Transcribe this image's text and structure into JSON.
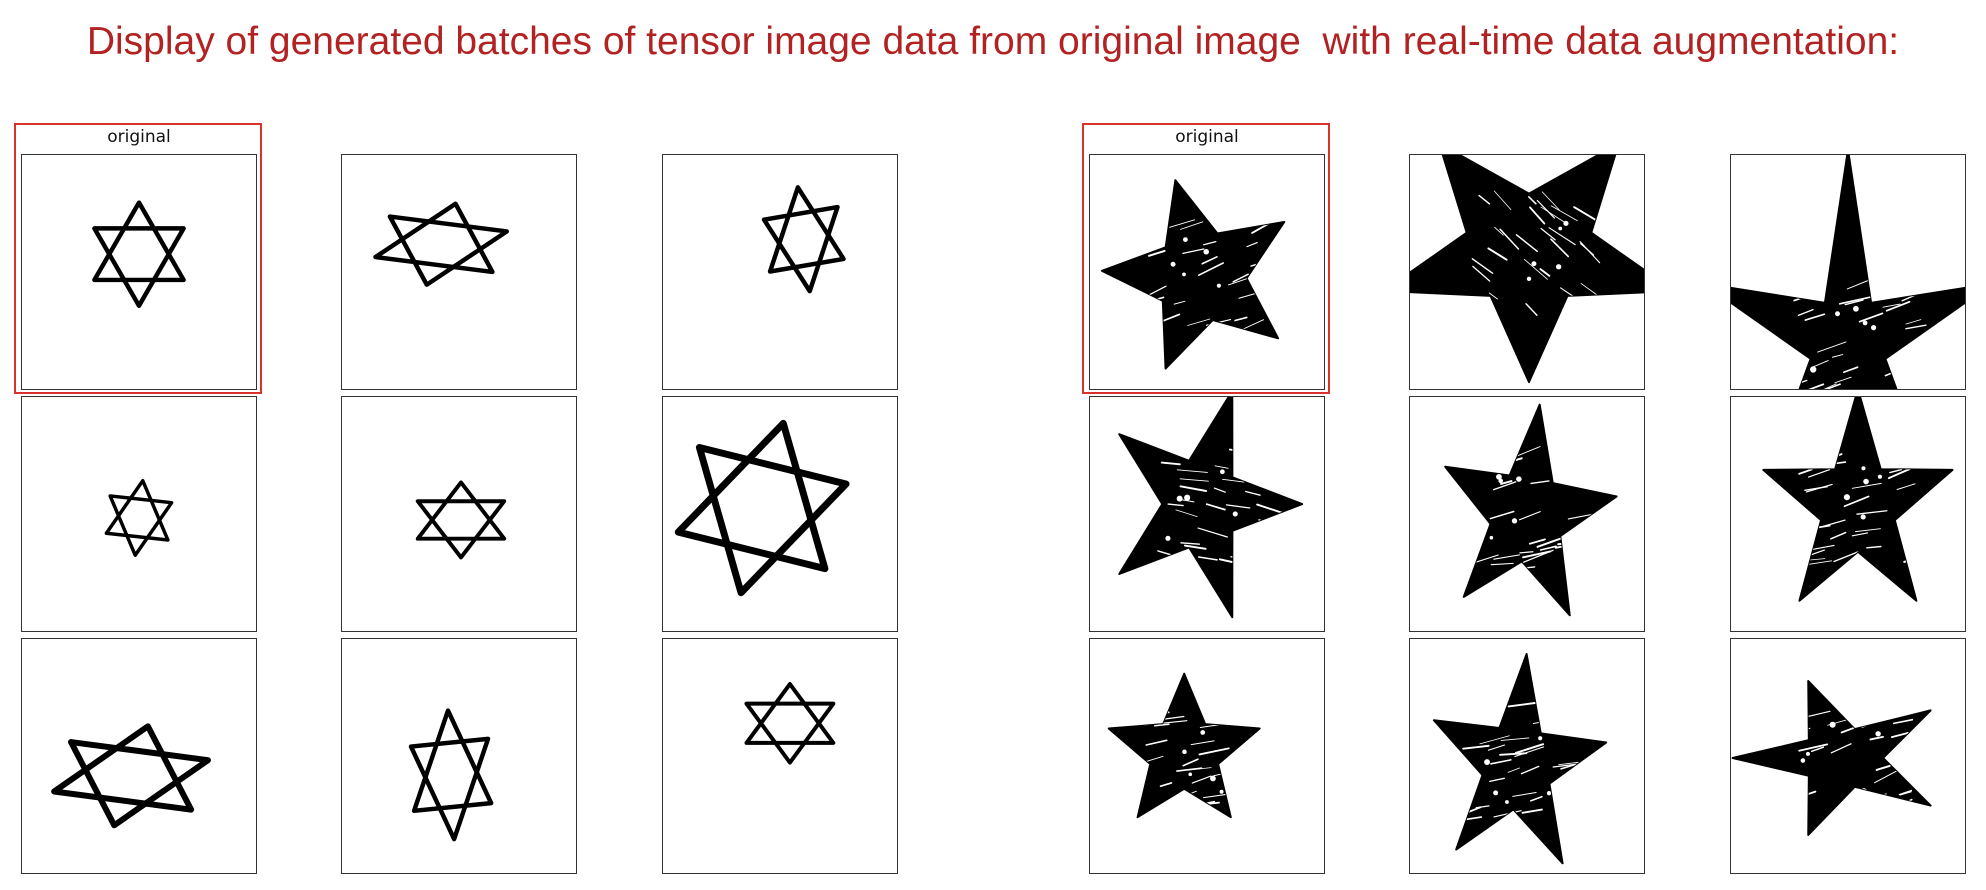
{
  "title": "Display of generated batches of tensor image data from original image  with real-time data augmentation:",
  "colors": {
    "title": "#b22222",
    "highlight": "#d9322a",
    "ink": "#000000"
  },
  "groups": [
    {
      "name": "hexagram-group",
      "shape": "hexagram",
      "original_label": "original",
      "panels": [
        {
          "role": "original",
          "variant": "hexagram-original"
        },
        {
          "role": "augmented",
          "variant": "hexagram-aug-1"
        },
        {
          "role": "augmented",
          "variant": "hexagram-aug-2"
        },
        {
          "role": "augmented",
          "variant": "hexagram-aug-3"
        },
        {
          "role": "augmented",
          "variant": "hexagram-aug-4"
        },
        {
          "role": "augmented",
          "variant": "hexagram-aug-5"
        },
        {
          "role": "augmented",
          "variant": "hexagram-aug-6"
        },
        {
          "role": "augmented",
          "variant": "hexagram-aug-7"
        },
        {
          "role": "augmented",
          "variant": "hexagram-aug-8"
        }
      ]
    },
    {
      "name": "pentagram-group",
      "shape": "filled-five-point-star",
      "original_label": "original",
      "panels": [
        {
          "role": "original",
          "variant": "star-original"
        },
        {
          "role": "augmented",
          "variant": "star-aug-1"
        },
        {
          "role": "augmented",
          "variant": "star-aug-2"
        },
        {
          "role": "augmented",
          "variant": "star-aug-3"
        },
        {
          "role": "augmented",
          "variant": "star-aug-4"
        },
        {
          "role": "augmented",
          "variant": "star-aug-5"
        },
        {
          "role": "augmented",
          "variant": "star-aug-6"
        },
        {
          "role": "augmented",
          "variant": "star-aug-7"
        },
        {
          "role": "augmented",
          "variant": "star-aug-8"
        }
      ]
    }
  ]
}
